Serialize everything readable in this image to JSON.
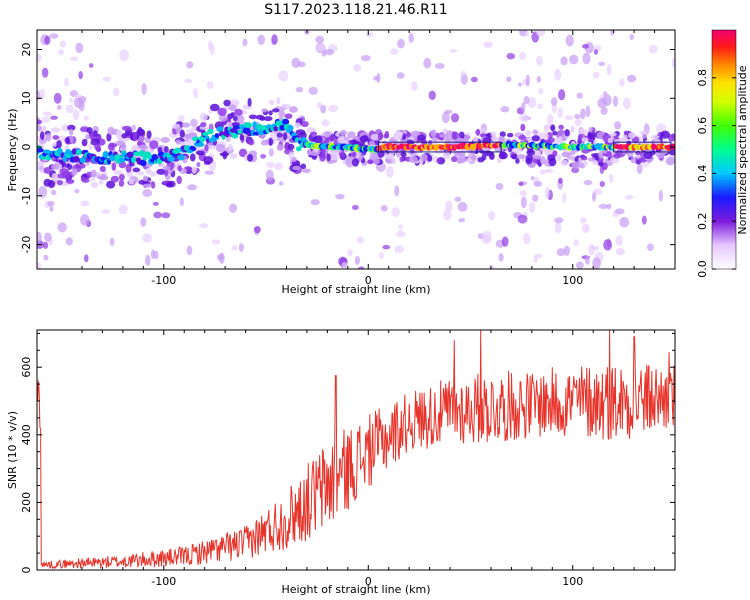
{
  "title": "S117.2023.118.21.46.R11",
  "chart_data": [
    {
      "type": "heatmap",
      "xlabel": "Height of straight line (km)",
      "ylabel": "Frequency (Hz)",
      "xlim": [
        -162,
        150
      ],
      "ylim": [
        -25,
        24
      ],
      "xticks": [
        -100,
        0,
        100
      ],
      "yticks": [
        -20,
        -10,
        0,
        10,
        20
      ],
      "colorbar": {
        "label": "Normalized spectral amplitude",
        "ticks": [
          0.0,
          0.2,
          0.4,
          0.6,
          0.8
        ],
        "range": [
          0,
          1
        ],
        "colormap": "white-purple-blue-cyan-green-yellow-orange-red-pink"
      },
      "trace": [
        {
          "x": -160,
          "f": -1.5
        },
        {
          "x": -140,
          "f": -2.0
        },
        {
          "x": -120,
          "f": -2.0
        },
        {
          "x": -100,
          "f": -2.5
        },
        {
          "x": -90,
          "f": -1.0
        },
        {
          "x": -80,
          "f": 2.0
        },
        {
          "x": -70,
          "f": 3.0
        },
        {
          "x": -60,
          "f": 3.5
        },
        {
          "x": -50,
          "f": 4.0
        },
        {
          "x": -40,
          "f": 5.0
        },
        {
          "x": -35,
          "f": 0.5
        },
        {
          "x": -30,
          "f": 0.5
        },
        {
          "x": -20,
          "f": 0.0
        },
        {
          "x": -10,
          "f": 0.0
        },
        {
          "x": 0,
          "f": -0.5
        },
        {
          "x": 10,
          "f": 0.0
        },
        {
          "x": 40,
          "f": 0.0
        },
        {
          "x": 70,
          "f": 0.5
        },
        {
          "x": 100,
          "f": 0.0
        },
        {
          "x": 130,
          "f": 0.0
        },
        {
          "x": 148,
          "f": 0.0
        }
      ],
      "grid": false
    },
    {
      "type": "line",
      "xlabel": "Height of straight line (km)",
      "ylabel": "SNR (10 * v/v)",
      "xlim": [
        -162,
        150
      ],
      "ylim": [
        0,
        710
      ],
      "xticks": [
        -100,
        0,
        100
      ],
      "yticks": [
        0,
        200,
        400,
        600
      ],
      "line_color": "#e8332a",
      "envelope": [
        {
          "x": -160,
          "mean": 15,
          "spread": 10
        },
        {
          "x": -120,
          "mean": 25,
          "spread": 20
        },
        {
          "x": -90,
          "mean": 40,
          "spread": 30
        },
        {
          "x": -60,
          "mean": 80,
          "spread": 50
        },
        {
          "x": -40,
          "mean": 150,
          "spread": 90
        },
        {
          "x": -20,
          "mean": 250,
          "spread": 140
        },
        {
          "x": 0,
          "mean": 350,
          "spread": 110
        },
        {
          "x": 20,
          "mean": 440,
          "spread": 90
        },
        {
          "x": 40,
          "mean": 470,
          "spread": 100
        },
        {
          "x": 60,
          "mean": 480,
          "spread": 110
        },
        {
          "x": 80,
          "mean": 490,
          "spread": 100
        },
        {
          "x": 100,
          "mean": 500,
          "spread": 110
        },
        {
          "x": 120,
          "mean": 500,
          "spread": 120
        },
        {
          "x": 150,
          "mean": 510,
          "spread": 100
        }
      ],
      "peaks": [
        {
          "x": -16,
          "y": 575
        },
        {
          "x": 42,
          "y": 680
        },
        {
          "x": 55,
          "y": 710
        },
        {
          "x": 118,
          "y": 710
        },
        {
          "x": 130,
          "y": 690
        },
        {
          "x": 147,
          "y": 645
        }
      ],
      "grid": false
    }
  ]
}
